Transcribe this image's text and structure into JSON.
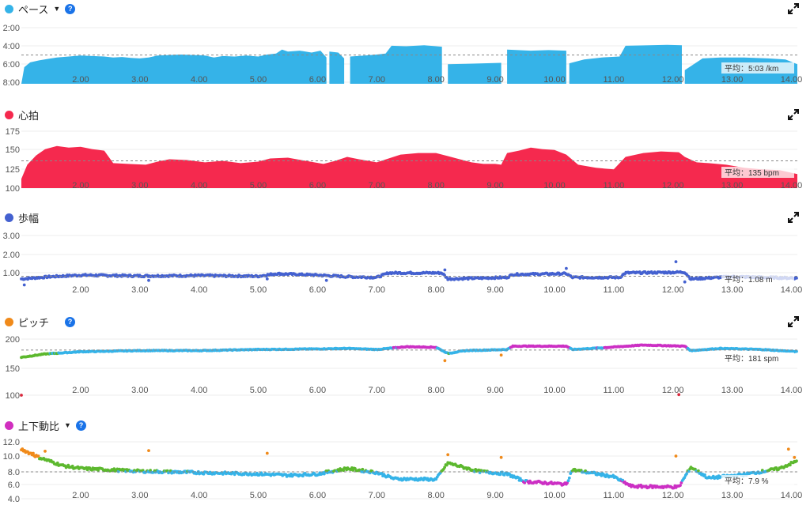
{
  "colors": {
    "pace": "#35b3e8",
    "heart_rate": "#f5294e",
    "stride": "#4461d0",
    "pitch_dot": "#f08a1a",
    "vo_ratio_dot": "#d12fbf",
    "zone_green": "#5cb82e",
    "zone_blue": "#35b3e8",
    "zone_purple": "#cc2fc4",
    "zone_orange": "#f08a1a",
    "zone_red": "#d8283c",
    "help": "#1a73e8"
  },
  "icons": {
    "expand": "expand-icon",
    "help": "help-icon",
    "dropdown": "chevron-down-icon"
  },
  "chart_data": [
    {
      "id": "pace",
      "type": "area",
      "title": "ペース",
      "has_dropdown": true,
      "has_help": true,
      "inverted_y": true,
      "y_ticks": [
        "2:00",
        "4:00",
        "6:00",
        "8:00"
      ],
      "ylim": [
        8.0,
        2.0
      ],
      "x_ticks": [
        "2.00",
        "3.00",
        "4.00",
        "5.00",
        "6.00",
        "7.00",
        "8.00",
        "9.00",
        "10.00",
        "11.00",
        "12.00",
        "13.00",
        "14.00"
      ],
      "xlim": [
        1.0,
        14.1
      ],
      "average_value": 5.05,
      "average_label": "平均：5:03 /km",
      "segments": [
        [
          [
            1.0,
            8.0
          ],
          [
            1.05,
            6.3
          ],
          [
            1.15,
            5.8
          ],
          [
            1.3,
            5.6
          ],
          [
            1.45,
            5.45
          ],
          [
            1.6,
            5.3
          ],
          [
            1.8,
            5.2
          ],
          [
            2.0,
            5.1
          ],
          [
            2.2,
            5.15
          ],
          [
            2.4,
            5.2
          ],
          [
            2.55,
            5.3
          ],
          [
            2.7,
            5.25
          ],
          [
            2.85,
            5.35
          ],
          [
            3.0,
            5.4
          ],
          [
            3.15,
            5.3
          ],
          [
            3.3,
            5.1
          ],
          [
            3.5,
            5.05
          ],
          [
            3.7,
            5.0
          ],
          [
            3.9,
            5.05
          ],
          [
            4.1,
            5.1
          ],
          [
            4.25,
            5.3
          ],
          [
            4.4,
            5.15
          ],
          [
            4.6,
            5.2
          ],
          [
            4.8,
            5.1
          ],
          [
            5.0,
            5.2
          ],
          [
            5.15,
            5.0
          ],
          [
            5.3,
            4.9
          ],
          [
            5.4,
            4.5
          ],
          [
            5.5,
            4.7
          ],
          [
            5.7,
            4.6
          ],
          [
            5.9,
            4.8
          ],
          [
            6.05,
            4.6
          ],
          [
            6.15,
            5.3
          ]
        ],
        [
          [
            6.2,
            4.7
          ],
          [
            6.35,
            4.8
          ],
          [
            6.45,
            5.4
          ]
        ],
        [
          [
            6.55,
            5.2
          ],
          [
            6.8,
            5.1
          ],
          [
            7.0,
            5.0
          ],
          [
            7.15,
            4.9
          ],
          [
            7.25,
            4.1
          ],
          [
            7.5,
            4.15
          ],
          [
            7.8,
            4.05
          ],
          [
            8.1,
            4.2
          ]
        ],
        [
          [
            8.2,
            6.0
          ],
          [
            8.5,
            5.95
          ],
          [
            8.8,
            5.9
          ],
          [
            9.1,
            5.85
          ]
        ],
        [
          [
            9.2,
            4.5
          ],
          [
            9.6,
            4.6
          ],
          [
            9.9,
            4.55
          ],
          [
            10.2,
            4.6
          ]
        ],
        [
          [
            10.25,
            5.9
          ],
          [
            10.5,
            5.5
          ],
          [
            10.8,
            5.3
          ],
          [
            11.1,
            5.2
          ],
          [
            11.2,
            4.1
          ],
          [
            11.6,
            4.05
          ],
          [
            11.9,
            4.0
          ],
          [
            12.15,
            4.05
          ]
        ],
        [
          [
            12.2,
            6.6
          ],
          [
            12.5,
            5.4
          ],
          [
            12.8,
            5.3
          ],
          [
            13.2,
            5.3
          ],
          [
            13.6,
            5.4
          ],
          [
            13.9,
            5.5
          ],
          [
            14.1,
            6.0
          ]
        ]
      ]
    },
    {
      "id": "heart_rate",
      "type": "area",
      "title": "心拍",
      "has_dropdown": false,
      "has_help": false,
      "y_ticks": [
        "175",
        "150",
        "125",
        "100"
      ],
      "ylim": [
        100,
        175
      ],
      "x_ticks": [
        "2.00",
        "3.00",
        "4.00",
        "5.00",
        "6.00",
        "7.00",
        "8.00",
        "9.00",
        "10.00",
        "11.00",
        "12.00",
        "13.00",
        "14.00"
      ],
      "xlim": [
        1.0,
        14.1
      ],
      "average_value": 135,
      "average_label": "平均：135 bpm",
      "segments": [
        [
          [
            1.0,
            112
          ],
          [
            1.1,
            130
          ],
          [
            1.25,
            142
          ],
          [
            1.4,
            150
          ],
          [
            1.6,
            154
          ],
          [
            1.8,
            152
          ],
          [
            2.0,
            153
          ],
          [
            2.2,
            150
          ],
          [
            2.4,
            148
          ],
          [
            2.55,
            132
          ],
          [
            2.8,
            131
          ],
          [
            3.1,
            130
          ],
          [
            3.3,
            134
          ],
          [
            3.5,
            137
          ],
          [
            3.8,
            136
          ],
          [
            4.1,
            133
          ],
          [
            4.4,
            135
          ],
          [
            4.7,
            132
          ],
          [
            5.0,
            134
          ],
          [
            5.2,
            138
          ],
          [
            5.5,
            139
          ],
          [
            5.8,
            135
          ],
          [
            6.1,
            131
          ],
          [
            6.3,
            135
          ],
          [
            6.5,
            140
          ],
          [
            6.7,
            137
          ],
          [
            7.0,
            133
          ],
          [
            7.2,
            138
          ],
          [
            7.4,
            143
          ],
          [
            7.7,
            145
          ],
          [
            8.0,
            145
          ],
          [
            8.2,
            141
          ],
          [
            8.4,
            137
          ],
          [
            8.6,
            133
          ],
          [
            8.8,
            131
          ],
          [
            9.0,
            131
          ],
          [
            9.1,
            130
          ],
          [
            9.2,
            145
          ],
          [
            9.4,
            148
          ],
          [
            9.6,
            152
          ],
          [
            9.8,
            150
          ],
          [
            10.0,
            149
          ],
          [
            10.2,
            143
          ],
          [
            10.4,
            130
          ],
          [
            10.7,
            126
          ],
          [
            11.0,
            124
          ],
          [
            11.2,
            140
          ],
          [
            11.5,
            145
          ],
          [
            11.8,
            147
          ],
          [
            12.1,
            146
          ],
          [
            12.2,
            140
          ],
          [
            12.4,
            133
          ],
          [
            12.6,
            132
          ],
          [
            12.9,
            130
          ],
          [
            13.2,
            126
          ],
          [
            13.5,
            124
          ],
          [
            13.8,
            123
          ],
          [
            14.1,
            118
          ]
        ]
      ]
    },
    {
      "id": "stride",
      "type": "scatter",
      "title": "歩幅",
      "has_dropdown": false,
      "has_help": false,
      "y_ticks": [
        "3.00",
        "2.00",
        "1.00"
      ],
      "ylim": [
        0.0,
        4.0
      ],
      "x_ticks": [
        "2.00",
        "3.00",
        "4.00",
        "5.00",
        "6.00",
        "7.00",
        "8.00",
        "9.00",
        "10.00",
        "11.00",
        "12.00",
        "13.00",
        "14.00"
      ],
      "xlim": [
        1.0,
        14.1
      ],
      "average_value": 1.08,
      "average_label": "平均：1.08 m",
      "trend": [
        [
          1.0,
          0.9
        ],
        [
          1.5,
          1.05
        ],
        [
          2.0,
          1.15
        ],
        [
          3.0,
          1.1
        ],
        [
          4.0,
          1.12
        ],
        [
          5.0,
          1.08
        ],
        [
          5.3,
          1.25
        ],
        [
          6.0,
          1.15
        ],
        [
          6.5,
          1.05
        ],
        [
          7.0,
          1.0
        ],
        [
          7.2,
          1.3
        ],
        [
          8.1,
          1.3
        ],
        [
          8.2,
          0.9
        ],
        [
          9.2,
          1.0
        ],
        [
          9.3,
          1.2
        ],
        [
          10.2,
          1.25
        ],
        [
          10.3,
          1.0
        ],
        [
          11.1,
          1.0
        ],
        [
          11.2,
          1.3
        ],
        [
          12.2,
          1.35
        ],
        [
          12.3,
          0.9
        ],
        [
          13.0,
          1.05
        ],
        [
          14.1,
          0.95
        ]
      ],
      "outliers": [
        [
          1.05,
          0.5
        ],
        [
          3.15,
          0.8
        ],
        [
          5.15,
          0.9
        ],
        [
          6.15,
          0.8
        ],
        [
          8.15,
          1.5
        ],
        [
          10.2,
          1.6
        ],
        [
          12.05,
          2.05
        ],
        [
          12.2,
          0.7
        ]
      ]
    },
    {
      "id": "pitch",
      "type": "scatter",
      "title": "ピッチ",
      "has_dropdown": false,
      "has_help": true,
      "y_ticks": [
        "200",
        "150",
        "100"
      ],
      "ylim": [
        100,
        205
      ],
      "x_ticks": [
        "2.00",
        "3.00",
        "4.00",
        "5.00",
        "6.00",
        "7.00",
        "8.00",
        "9.00",
        "10.00",
        "11.00",
        "12.00",
        "13.00",
        "14.00"
      ],
      "xlim": [
        1.0,
        14.1
      ],
      "average_value": 181,
      "average_label": "平均：181 spm",
      "trend": [
        [
          1.0,
          168
        ],
        [
          1.4,
          174
        ],
        [
          2.0,
          178
        ],
        [
          3.0,
          180
        ],
        [
          4.0,
          180
        ],
        [
          5.0,
          182
        ],
        [
          6.0,
          183
        ],
        [
          6.5,
          184
        ],
        [
          7.0,
          182
        ],
        [
          7.5,
          187
        ],
        [
          8.0,
          186
        ],
        [
          8.2,
          175
        ],
        [
          8.5,
          180
        ],
        [
          9.2,
          182
        ],
        [
          9.3,
          188
        ],
        [
          10.2,
          188
        ],
        [
          10.3,
          182
        ],
        [
          10.8,
          185
        ],
        [
          11.5,
          190
        ],
        [
          12.2,
          188
        ],
        [
          12.3,
          180
        ],
        [
          12.8,
          184
        ],
        [
          13.5,
          182
        ],
        [
          14.1,
          178
        ]
      ],
      "outliers": [
        [
          1.0,
          100
        ],
        [
          8.15,
          162
        ],
        [
          9.1,
          172
        ],
        [
          12.1,
          101
        ]
      ]
    },
    {
      "id": "vertical_ratio",
      "type": "scatter",
      "title": "上下動比",
      "has_dropdown": true,
      "has_help": true,
      "y_ticks": [
        "12.0",
        "10.0",
        "8.0",
        "6.0",
        "4.0"
      ],
      "ylim": [
        4.0,
        12.5
      ],
      "x_ticks": [
        "2.00",
        "3.00",
        "4.00",
        "5.00",
        "6.00",
        "7.00",
        "8.00",
        "9.00",
        "10.00",
        "11.00",
        "12.00",
        "13.00",
        "14.00"
      ],
      "xlim": [
        1.0,
        14.1
      ],
      "average_value": 7.9,
      "average_label": "平均：7.9 %",
      "trend": [
        [
          1.0,
          11.2
        ],
        [
          1.3,
          10.0
        ],
        [
          1.7,
          8.8
        ],
        [
          2.0,
          8.4
        ],
        [
          3.0,
          8.0
        ],
        [
          4.0,
          7.8
        ],
        [
          5.0,
          7.6
        ],
        [
          5.5,
          7.4
        ],
        [
          6.0,
          7.6
        ],
        [
          6.5,
          8.4
        ],
        [
          7.0,
          7.8
        ],
        [
          7.3,
          6.9
        ],
        [
          8.0,
          6.8
        ],
        [
          8.2,
          9.2
        ],
        [
          8.7,
          8.0
        ],
        [
          9.2,
          7.6
        ],
        [
          9.5,
          6.5
        ],
        [
          10.2,
          6.1
        ],
        [
          10.3,
          8.2
        ],
        [
          11.0,
          7.2
        ],
        [
          11.3,
          5.8
        ],
        [
          12.1,
          5.7
        ],
        [
          12.3,
          8.6
        ],
        [
          12.6,
          7.0
        ],
        [
          13.2,
          7.5
        ],
        [
          13.8,
          8.4
        ],
        [
          14.1,
          9.5
        ]
      ],
      "outliers": [
        [
          1.2,
          10.6
        ],
        [
          1.4,
          10.9
        ],
        [
          3.15,
          11.0
        ],
        [
          5.15,
          10.6
        ],
        [
          8.2,
          10.4
        ],
        [
          9.1,
          10.0
        ],
        [
          12.05,
          10.2
        ],
        [
          13.95,
          11.2
        ],
        [
          14.05,
          10.0
        ]
      ]
    }
  ]
}
